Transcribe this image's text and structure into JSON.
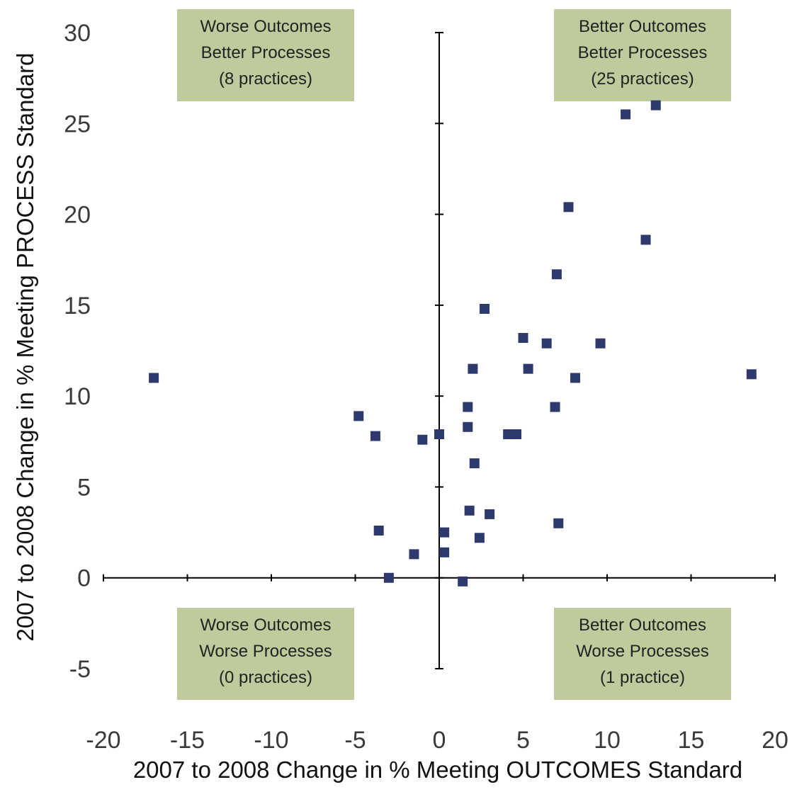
{
  "chart_data": {
    "type": "scatter",
    "title": "",
    "xlabel": "2007 to 2008 Change in % Meeting OUTCOMES Standard",
    "ylabel": "2007 to 2008 Change in % Meeting PROCESS Standard",
    "xlim": [
      -20,
      20
    ],
    "ylim": [
      -5,
      30
    ],
    "xticks": [
      -20,
      -15,
      -10,
      -5,
      0,
      5,
      10,
      15,
      20
    ],
    "yticks": [
      30,
      25,
      20,
      15,
      10,
      5,
      0,
      -5
    ],
    "grid": false,
    "colors": {
      "marker": "#2e3a6e",
      "axis": "#000000",
      "box_fill": "#bfcb9c"
    },
    "quadrant_labels": [
      {
        "lines": [
          "Worse Outcomes",
          "Better Processes",
          "(8 practices)"
        ]
      },
      {
        "lines": [
          "Better Outcomes",
          "Better Processes",
          "(25 practices)"
        ]
      },
      {
        "lines": [
          "Worse Outcomes",
          "Worse Processes",
          "(0 practices)"
        ]
      },
      {
        "lines": [
          "Better Outcomes",
          "Worse Processes",
          "(1 practice)"
        ]
      }
    ],
    "series": [
      {
        "points": [
          [
            -17.0,
            11.0
          ],
          [
            -4.8,
            8.9
          ],
          [
            -3.8,
            7.8
          ],
          [
            -1.0,
            7.6
          ],
          [
            0.0,
            7.9
          ],
          [
            -3.6,
            2.6
          ],
          [
            -1.5,
            1.3
          ],
          [
            -3.0,
            0.0
          ],
          [
            0.3,
            2.5
          ],
          [
            0.3,
            1.4
          ],
          [
            1.4,
            -0.2
          ],
          [
            1.7,
            9.4
          ],
          [
            1.7,
            8.3
          ],
          [
            2.0,
            11.5
          ],
          [
            2.1,
            6.3
          ],
          [
            1.8,
            3.7
          ],
          [
            2.4,
            2.2
          ],
          [
            3.0,
            3.5
          ],
          [
            2.7,
            14.8
          ],
          [
            4.1,
            7.9
          ],
          [
            4.6,
            7.9
          ],
          [
            5.0,
            13.2
          ],
          [
            5.3,
            11.5
          ],
          [
            6.4,
            12.9
          ],
          [
            6.9,
            9.4
          ],
          [
            7.0,
            16.7
          ],
          [
            7.1,
            3.0
          ],
          [
            7.7,
            20.4
          ],
          [
            8.1,
            11.0
          ],
          [
            9.6,
            12.9
          ],
          [
            11.1,
            25.5
          ],
          [
            12.3,
            18.6
          ],
          [
            12.9,
            26.0
          ],
          [
            18.6,
            11.2
          ]
        ]
      }
    ]
  }
}
